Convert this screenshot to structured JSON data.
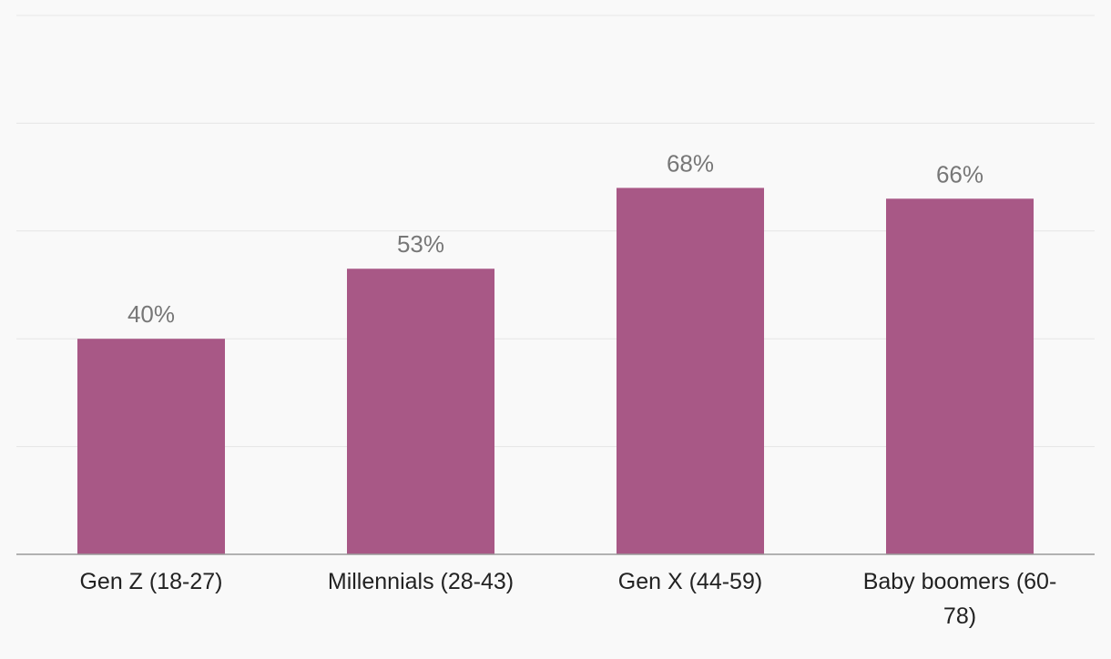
{
  "colors": {
    "bar": "#a85886",
    "background": "#f9f9f9",
    "gridline": "#e6e6e6",
    "axis": "#9a9a9a",
    "value_label": "#777777",
    "category_label": "#222222"
  },
  "chart_data": {
    "type": "bar",
    "title": "",
    "xlabel": "",
    "ylabel": "",
    "categories": [
      "Gen Z (18-27)",
      "Millennials (28-43)",
      "Gen X (44-59)",
      "Baby boomers (60-78)"
    ],
    "category_label_lines": [
      [
        "Gen Z (18-27)"
      ],
      [
        "Millennials (28-43)"
      ],
      [
        "Gen X (44-59)"
      ],
      [
        "Baby boomers (60-",
        "78)"
      ]
    ],
    "values": [
      40,
      53,
      68,
      66
    ],
    "value_labels": [
      "40%",
      "53%",
      "68%",
      "66%"
    ],
    "ylim": [
      0,
      100
    ],
    "grid": true,
    "legend": "none"
  }
}
